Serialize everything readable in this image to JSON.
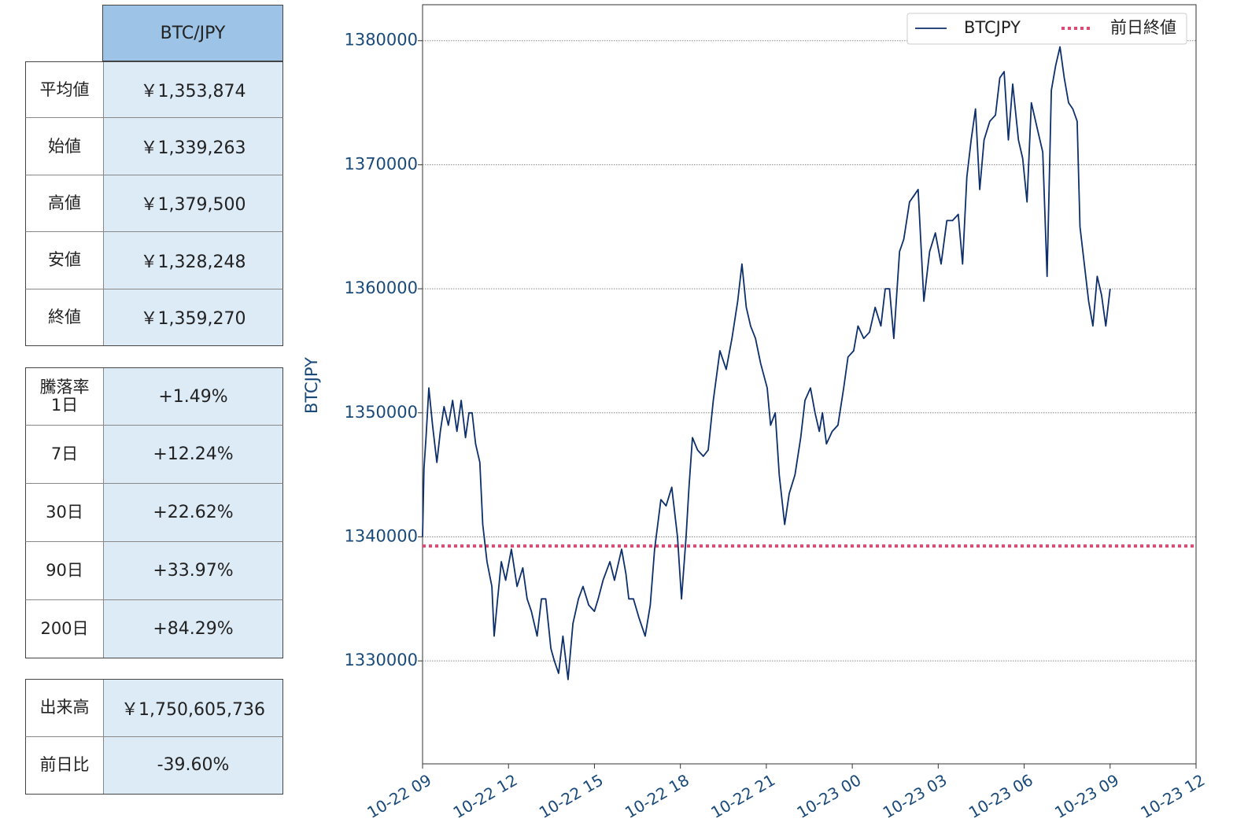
{
  "table1": {
    "header": "BTC/JPY",
    "rows": [
      [
        "平均値",
        "￥1,353,874"
      ],
      [
        "始値",
        "￥1,339,263"
      ],
      [
        "高値",
        "￥1,379,500"
      ],
      [
        "安値",
        "￥1,328,248"
      ],
      [
        "終値",
        "￥1,359,270"
      ]
    ]
  },
  "table2": {
    "caption": "騰落率",
    "rows": [
      [
        "1日",
        "+1.49%"
      ],
      [
        "7日",
        "+12.24%"
      ],
      [
        "30日",
        "+22.62%"
      ],
      [
        "90日",
        "+33.97%"
      ],
      [
        "200日",
        "+84.29%"
      ]
    ]
  },
  "table3": {
    "rows": [
      [
        "出来高",
        "￥1,750,605,736"
      ],
      [
        "前日比",
        "-39.60%"
      ]
    ]
  },
  "chart_data": {
    "type": "line",
    "ylabel": "BTCJPY",
    "x": [
      9.0,
      9.05,
      9.12,
      9.22,
      9.35,
      9.5,
      9.62,
      9.75,
      9.9,
      10.05,
      10.2,
      10.35,
      10.5,
      10.62,
      10.73,
      10.85,
      11.0,
      11.1,
      11.25,
      11.42,
      11.5,
      11.62,
      11.75,
      11.9,
      12.1,
      12.3,
      12.5,
      12.65,
      12.8,
      13.0,
      13.15,
      13.3,
      13.48,
      13.6,
      13.75,
      13.9,
      14.08,
      14.25,
      14.44,
      14.6,
      14.8,
      15.0,
      15.13,
      15.3,
      15.54,
      15.7,
      15.95,
      16.1,
      16.2,
      16.36,
      16.55,
      16.77,
      16.95,
      17.1,
      17.32,
      17.5,
      17.7,
      17.9,
      18.04,
      18.2,
      18.3,
      18.42,
      18.6,
      18.8,
      18.97,
      19.15,
      19.38,
      19.6,
      19.8,
      20.0,
      20.15,
      20.3,
      20.45,
      20.62,
      20.8,
      21.03,
      21.15,
      21.31,
      21.45,
      21.64,
      21.8,
      22.0,
      22.2,
      22.35,
      22.54,
      22.7,
      22.85,
      22.96,
      23.1,
      23.3,
      23.5,
      23.7,
      23.85,
      24.05,
      24.2,
      24.4,
      24.6,
      24.8,
      25.0,
      25.15,
      25.3,
      25.45,
      25.65,
      25.8,
      26.0,
      26.15,
      26.3,
      26.5,
      26.7,
      26.9,
      27.1,
      27.3,
      27.5,
      27.7,
      27.85,
      28.0,
      28.15,
      28.3,
      28.45,
      28.6,
      28.8,
      29.0,
      29.15,
      29.3,
      29.45,
      29.6,
      29.8,
      29.95,
      30.1,
      30.25,
      30.45,
      30.65,
      30.8,
      30.95,
      31.1,
      31.25,
      31.4,
      31.55,
      31.7,
      31.85,
      31.95,
      32.1,
      32.25,
      32.4,
      32.55,
      32.7,
      32.85,
      33.0
    ],
    "series": [
      {
        "name": "BTCJPY",
        "color": "#0d2f6b",
        "values": [
          1340000,
          1345500,
          1348000,
          1352000,
          1349000,
          1346000,
          1348500,
          1350500,
          1349000,
          1351000,
          1348500,
          1351000,
          1348000,
          1350000,
          1350000,
          1347500,
          1346000,
          1341000,
          1338000,
          1336000,
          1332000,
          1335000,
          1338000,
          1336500,
          1339000,
          1336000,
          1337500,
          1335000,
          1334000,
          1332000,
          1335000,
          1335000,
          1331000,
          1330000,
          1329000,
          1332000,
          1328500,
          1333000,
          1335000,
          1336000,
          1334500,
          1334000,
          1335000,
          1336500,
          1338000,
          1336500,
          1339000,
          1337000,
          1335000,
          1335000,
          1333500,
          1332000,
          1334500,
          1339000,
          1343000,
          1342500,
          1344000,
          1340000,
          1335000,
          1340000,
          1344000,
          1348000,
          1347000,
          1346500,
          1347000,
          1351000,
          1355000,
          1353500,
          1356000,
          1359000,
          1362000,
          1358500,
          1357000,
          1356000,
          1354000,
          1352000,
          1349000,
          1350000,
          1345000,
          1341000,
          1343500,
          1345000,
          1348000,
          1351000,
          1352000,
          1350000,
          1348500,
          1350000,
          1347500,
          1348500,
          1349000,
          1352000,
          1354500,
          1355000,
          1357000,
          1356000,
          1356500,
          1358500,
          1357000,
          1360000,
          1360000,
          1356000,
          1363000,
          1364000,
          1367000,
          1367500,
          1368000,
          1359000,
          1363000,
          1364500,
          1362000,
          1365500,
          1365500,
          1366000,
          1362000,
          1369000,
          1372000,
          1374500,
          1368000,
          1372000,
          1373500,
          1374000,
          1377000,
          1377500,
          1372000,
          1376500,
          1372000,
          1370500,
          1367000,
          1375000,
          1373000,
          1371000,
          1361000,
          1376000,
          1378000,
          1379500,
          1377000,
          1375000,
          1374500,
          1373500,
          1365000,
          1362000,
          1359000,
          1357000,
          1361000,
          1359500,
          1357000,
          1360000
        ]
      }
    ],
    "hline": {
      "name": "前日終値",
      "value": 1339263,
      "color": "#e8446f"
    },
    "xlim": [
      9,
      36
    ],
    "xticks": [
      {
        "value": 9,
        "label": "10-22 09"
      },
      {
        "value": 12,
        "label": "10-22 12"
      },
      {
        "value": 15,
        "label": "10-22 15"
      },
      {
        "value": 18,
        "label": "10-22 18"
      },
      {
        "value": 21,
        "label": "10-22 21"
      },
      {
        "value": 24,
        "label": "10-23 00"
      },
      {
        "value": 27,
        "label": "10-23 03"
      },
      {
        "value": 30,
        "label": "10-23 06"
      },
      {
        "value": 33,
        "label": "10-23 09"
      },
      {
        "value": 36,
        "label": "10-23 12"
      }
    ],
    "ylim": [
      1321700,
      1382900
    ],
    "yticks": [
      1330000,
      1340000,
      1350000,
      1360000,
      1370000,
      1380000
    ],
    "grid": true,
    "legend": "upper right"
  }
}
